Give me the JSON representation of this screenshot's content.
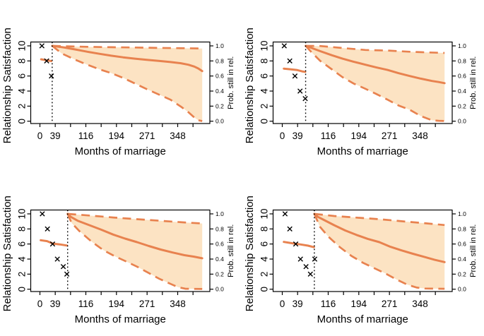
{
  "figure": {
    "background": "#FFFFFF",
    "description_colors": {
      "curve": "#E8824F",
      "band_fill": "#FCE3C3",
      "marker": "#000000",
      "vline": "#000000",
      "axis": "#000000"
    }
  },
  "chart_data": {
    "type": "line",
    "layout": "2x2-grid",
    "axes": {
      "x_title": "Months of marriage",
      "y_left_title": "Relationship Satisfaction",
      "y_right_title": "Prob. still in rel.",
      "x_tick_labels_visible": [
        "0",
        "39",
        "116",
        "194",
        "271",
        "348"
      ],
      "x_ticks": [
        {
          "m": 0,
          "label": "0"
        },
        {
          "m": 38.7,
          "label": "39"
        },
        {
          "m": 77.3,
          "label": ""
        },
        {
          "m": 116,
          "label": "116"
        },
        {
          "m": 154.7,
          "label": ""
        },
        {
          "m": 193.3,
          "label": "194"
        },
        {
          "m": 232,
          "label": ""
        },
        {
          "m": 270.7,
          "label": "271"
        },
        {
          "m": 309.3,
          "label": ""
        },
        {
          "m": 348,
          "label": "348"
        },
        {
          "m": 386.7,
          "label": ""
        }
      ],
      "y_left_ticks": [
        {
          "v": 0,
          "label": "0"
        },
        {
          "v": 2,
          "label": "2"
        },
        {
          "v": 4,
          "label": "4"
        },
        {
          "v": 6,
          "label": "6"
        },
        {
          "v": 8,
          "label": "8"
        },
        {
          "v": 10,
          "label": "10"
        }
      ],
      "y_right_ticks": [
        {
          "v": 0.0,
          "label": "0.0"
        },
        {
          "v": 0.2,
          "label": "0.2"
        },
        {
          "v": 0.4,
          "label": "0.4"
        },
        {
          "v": 0.6,
          "label": "0.6"
        },
        {
          "v": 0.8,
          "label": "0.8"
        },
        {
          "v": 1.0,
          "label": "1.0"
        }
      ],
      "ylim_left": [
        0,
        10
      ],
      "ylim_right": [
        0,
        1
      ],
      "grid": false,
      "legend": "none"
    },
    "panels": [
      {
        "panel": "top-left",
        "vline_x": 31,
        "satisfaction_points": [
          [
            5,
            10
          ],
          [
            17,
            8
          ],
          [
            29,
            6
          ]
        ],
        "satisfaction_line": [
          [
            3,
            8.22
          ],
          [
            16,
            8.1
          ],
          [
            29,
            7.98
          ]
        ],
        "prob_solid": [
          [
            31,
            1
          ],
          [
            60,
            0.98
          ],
          [
            90,
            0.952
          ],
          [
            120,
            0.922
          ],
          [
            150,
            0.895
          ],
          [
            180,
            0.87
          ],
          [
            210,
            0.848
          ],
          [
            240,
            0.83
          ],
          [
            270,
            0.815
          ],
          [
            300,
            0.8
          ],
          [
            330,
            0.785
          ],
          [
            355,
            0.77
          ],
          [
            375,
            0.75
          ],
          [
            390,
            0.725
          ],
          [
            400,
            0.7
          ],
          [
            410,
            0.665
          ]
        ],
        "prob_upper": [
          [
            31,
            1
          ],
          [
            60,
            0.995
          ],
          [
            120,
            0.988
          ],
          [
            180,
            0.982
          ],
          [
            240,
            0.978
          ],
          [
            300,
            0.973
          ],
          [
            350,
            0.97
          ],
          [
            410,
            0.965
          ]
        ],
        "prob_lower": [
          [
            31,
            1
          ],
          [
            55,
            0.9
          ],
          [
            90,
            0.814
          ],
          [
            120,
            0.75
          ],
          [
            150,
            0.69
          ],
          [
            180,
            0.638
          ],
          [
            210,
            0.575
          ],
          [
            240,
            0.5
          ],
          [
            270,
            0.425
          ],
          [
            300,
            0.355
          ],
          [
            330,
            0.285
          ],
          [
            357,
            0.19
          ],
          [
            375,
            0.12
          ],
          [
            390,
            0.05
          ],
          [
            400,
            0.012
          ],
          [
            410,
            0.002
          ]
        ]
      },
      {
        "panel": "top-right",
        "vline_x": 59,
        "satisfaction_points": [
          [
            5,
            10
          ],
          [
            19,
            8
          ],
          [
            32,
            6
          ],
          [
            45,
            4
          ],
          [
            58,
            3
          ]
        ],
        "satisfaction_line": [
          [
            4,
            6.98
          ],
          [
            20,
            6.9
          ],
          [
            38,
            6.78
          ],
          [
            50,
            6.62
          ],
          [
            58,
            6.55
          ]
        ],
        "prob_solid": [
          [
            59,
            1
          ],
          [
            70,
            0.98
          ],
          [
            96,
            0.93
          ],
          [
            125,
            0.876
          ],
          [
            152,
            0.83
          ],
          [
            180,
            0.79
          ],
          [
            210,
            0.75
          ],
          [
            237,
            0.715
          ],
          [
            266,
            0.68
          ],
          [
            294,
            0.637
          ],
          [
            322,
            0.6
          ],
          [
            350,
            0.565
          ],
          [
            378,
            0.534
          ],
          [
            395,
            0.52
          ],
          [
            410,
            0.505
          ]
        ],
        "prob_upper": [
          [
            59,
            1
          ],
          [
            96,
            0.998
          ],
          [
            125,
            0.985
          ],
          [
            152,
            0.972
          ],
          [
            210,
            0.945
          ],
          [
            266,
            0.938
          ],
          [
            322,
            0.922
          ],
          [
            350,
            0.916
          ],
          [
            410,
            0.906
          ]
        ],
        "prob_lower": [
          [
            59,
            1
          ],
          [
            75,
            0.91
          ],
          [
            96,
            0.8
          ],
          [
            125,
            0.69
          ],
          [
            152,
            0.585
          ],
          [
            180,
            0.5
          ],
          [
            210,
            0.43
          ],
          [
            237,
            0.363
          ],
          [
            266,
            0.286
          ],
          [
            294,
            0.208
          ],
          [
            322,
            0.152
          ],
          [
            350,
            0.068
          ],
          [
            378,
            0.012
          ],
          [
            395,
            0.006
          ],
          [
            410,
            0.003
          ]
        ]
      },
      {
        "panel": "bottom-left",
        "vline_x": 70,
        "satisfaction_points": [
          [
            6,
            10
          ],
          [
            19,
            8
          ],
          [
            32,
            6
          ],
          [
            44,
            4
          ],
          [
            59,
            3
          ],
          [
            68,
            2
          ]
        ],
        "satisfaction_line": [
          [
            2,
            6.5
          ],
          [
            18,
            6.38
          ],
          [
            33,
            6.05
          ],
          [
            50,
            5.95
          ],
          [
            68,
            5.8
          ]
        ],
        "prob_solid": [
          [
            70,
            1
          ],
          [
            78,
            0.96
          ],
          [
            95,
            0.91
          ],
          [
            125,
            0.85
          ],
          [
            155,
            0.79
          ],
          [
            185,
            0.725
          ],
          [
            215,
            0.672
          ],
          [
            245,
            0.625
          ],
          [
            275,
            0.573
          ],
          [
            305,
            0.527
          ],
          [
            335,
            0.487
          ],
          [
            365,
            0.452
          ],
          [
            388,
            0.433
          ],
          [
            410,
            0.41
          ]
        ],
        "prob_upper": [
          [
            70,
            1
          ],
          [
            125,
            0.978
          ],
          [
            185,
            0.952
          ],
          [
            245,
            0.93
          ],
          [
            305,
            0.908
          ],
          [
            365,
            0.886
          ],
          [
            410,
            0.872
          ]
        ],
        "prob_lower": [
          [
            70,
            1
          ],
          [
            80,
            0.88
          ],
          [
            100,
            0.77
          ],
          [
            131,
            0.63
          ],
          [
            160,
            0.52
          ],
          [
            188,
            0.44
          ],
          [
            217,
            0.37
          ],
          [
            245,
            0.3
          ],
          [
            273,
            0.22
          ],
          [
            301,
            0.14
          ],
          [
            330,
            0.07
          ],
          [
            350,
            0.025
          ],
          [
            368,
            0.006
          ],
          [
            410,
            0.003
          ]
        ]
      },
      {
        "panel": "bottom-right",
        "vline_x": 81,
        "satisfaction_points": [
          [
            7,
            10
          ],
          [
            19,
            8
          ],
          [
            34,
            6
          ],
          [
            46,
            4
          ],
          [
            60,
            3
          ],
          [
            71,
            2
          ],
          [
            82,
            4
          ]
        ],
        "satisfaction_line": [
          [
            4,
            6.28
          ],
          [
            25,
            6.1
          ],
          [
            45,
            5.95
          ],
          [
            65,
            5.78
          ],
          [
            80,
            5.58
          ]
        ],
        "prob_solid": [
          [
            81,
            1
          ],
          [
            90,
            0.96
          ],
          [
            105,
            0.92
          ],
          [
            131,
            0.85
          ],
          [
            159,
            0.78
          ],
          [
            188,
            0.72
          ],
          [
            216,
            0.668
          ],
          [
            245,
            0.625
          ],
          [
            273,
            0.563
          ],
          [
            301,
            0.515
          ],
          [
            330,
            0.47
          ],
          [
            358,
            0.43
          ],
          [
            385,
            0.39
          ],
          [
            410,
            0.36
          ]
        ],
        "prob_upper": [
          [
            81,
            1
          ],
          [
            131,
            0.972
          ],
          [
            188,
            0.95
          ],
          [
            245,
            0.93
          ],
          [
            301,
            0.902
          ],
          [
            358,
            0.877
          ],
          [
            410,
            0.852
          ]
        ],
        "prob_lower": [
          [
            81,
            1
          ],
          [
            95,
            0.83
          ],
          [
            116,
            0.7
          ],
          [
            145,
            0.56
          ],
          [
            175,
            0.44
          ],
          [
            204,
            0.35
          ],
          [
            232,
            0.28
          ],
          [
            260,
            0.21
          ],
          [
            288,
            0.13
          ],
          [
            316,
            0.06
          ],
          [
            340,
            0.022
          ],
          [
            360,
            0.009
          ],
          [
            410,
            0.006
          ]
        ]
      }
    ]
  }
}
